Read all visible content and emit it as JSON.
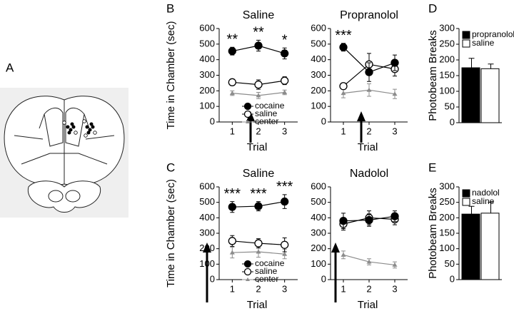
{
  "panel_labels": [
    "A",
    "B",
    "C",
    "D",
    "E"
  ],
  "chart_data": [
    {
      "type": "line",
      "title": "Saline",
      "xlabel": "Trial",
      "ylabel": "Time in Chamber (sec)",
      "categories": [
        "1",
        "2",
        "3"
      ],
      "ylim": [
        0,
        600
      ],
      "yticks": [
        0,
        100,
        200,
        300,
        400,
        500,
        600
      ],
      "legend": "lower right",
      "annotations": [
        "**",
        "**",
        "*"
      ],
      "series": [
        {
          "name": "cocaine",
          "color": "#000000",
          "marker": "circle",
          "values": [
            455,
            490,
            440
          ],
          "errors": [
            25,
            35,
            35
          ]
        },
        {
          "name": "saline",
          "color": "#ffffff",
          "marker": "circle",
          "values": [
            255,
            240,
            265
          ],
          "errors": [
            20,
            30,
            25
          ]
        },
        {
          "name": "center",
          "color": "#8c8c8c",
          "marker": "triangle",
          "values": [
            185,
            170,
            190
          ],
          "errors": [
            15,
            20,
            15
          ]
        }
      ]
    },
    {
      "type": "line",
      "title": "Propranolol",
      "xlabel": "Trial",
      "categories": [
        "1",
        "2",
        "3"
      ],
      "ylim": [
        0,
        600
      ],
      "yticks": [
        0,
        100,
        200,
        300,
        400,
        500,
        600
      ],
      "annotations": [
        "***",
        null,
        null
      ],
      "series": [
        {
          "name": "cocaine",
          "color": "#000000",
          "marker": "circle",
          "values": [
            480,
            320,
            380
          ],
          "errors": [
            25,
            60,
            50
          ]
        },
        {
          "name": "saline",
          "color": "#ffffff",
          "marker": "circle",
          "values": [
            230,
            370,
            340
          ],
          "errors": [
            10,
            70,
            45
          ]
        },
        {
          "name": "center",
          "color": "#8c8c8c",
          "marker": "triangle",
          "values": [
            185,
            205,
            180
          ],
          "errors": [
            30,
            40,
            30
          ]
        }
      ]
    },
    {
      "type": "line",
      "title": "Saline",
      "xlabel": "Trial",
      "ylabel": "Time in Chamber (sec)",
      "categories": [
        "1",
        "2",
        "3"
      ],
      "ylim": [
        0,
        600
      ],
      "yticks": [
        0,
        100,
        200,
        300,
        400,
        500,
        600
      ],
      "legend": "lower right",
      "annotations": [
        "***",
        "***",
        "***"
      ],
      "series": [
        {
          "name": "cocaine",
          "color": "#000000",
          "marker": "circle",
          "values": [
            470,
            475,
            505
          ],
          "errors": [
            35,
            30,
            45
          ]
        },
        {
          "name": "saline",
          "color": "#ffffff",
          "marker": "circle",
          "values": [
            250,
            235,
            225
          ],
          "errors": [
            35,
            30,
            45
          ]
        },
        {
          "name": "center",
          "color": "#8c8c8c",
          "marker": "triangle",
          "values": [
            175,
            180,
            165
          ],
          "errors": [
            35,
            35,
            30
          ]
        }
      ]
    },
    {
      "type": "line",
      "title": "Nadolol",
      "xlabel": "Trial",
      "categories": [
        "1",
        "2",
        "3"
      ],
      "ylim": [
        0,
        600
      ],
      "yticks": [
        0,
        100,
        200,
        300,
        400,
        500,
        600
      ],
      "series": [
        {
          "name": "cocaine",
          "color": "#000000",
          "marker": "circle",
          "values": [
            380,
            385,
            410
          ],
          "errors": [
            50,
            40,
            35
          ]
        },
        {
          "name": "saline",
          "color": "#ffffff",
          "marker": "circle",
          "values": [
            360,
            400,
            390
          ],
          "errors": [
            40,
            45,
            35
          ]
        },
        {
          "name": "center",
          "color": "#8c8c8c",
          "marker": "triangle",
          "values": [
            160,
            115,
            95
          ],
          "errors": [
            25,
            20,
            20
          ]
        }
      ]
    },
    {
      "type": "bar",
      "ylabel": "Photobeam Breaks",
      "categories": [
        null
      ],
      "ylim": [
        0,
        300
      ],
      "yticks": [
        0,
        50,
        100,
        150,
        200,
        250,
        300
      ],
      "legend": "upper left",
      "series": [
        {
          "name": "propranolol",
          "color": "#000000",
          "values": [
            175
          ],
          "errors": [
            30
          ]
        },
        {
          "name": "saline",
          "color": "#ffffff",
          "values": [
            172
          ],
          "errors": [
            15
          ]
        }
      ]
    },
    {
      "type": "bar",
      "ylabel": "Photobeam Breaks",
      "categories": [
        null
      ],
      "ylim": [
        0,
        300
      ],
      "yticks": [
        0,
        50,
        100,
        150,
        200,
        250,
        300
      ],
      "legend": "upper left",
      "series": [
        {
          "name": "nadolol",
          "color": "#000000",
          "values": [
            212
          ],
          "errors": [
            25
          ]
        },
        {
          "name": "saline",
          "color": "#ffffff",
          "values": [
            215
          ],
          "errors": [
            35
          ]
        }
      ]
    }
  ]
}
